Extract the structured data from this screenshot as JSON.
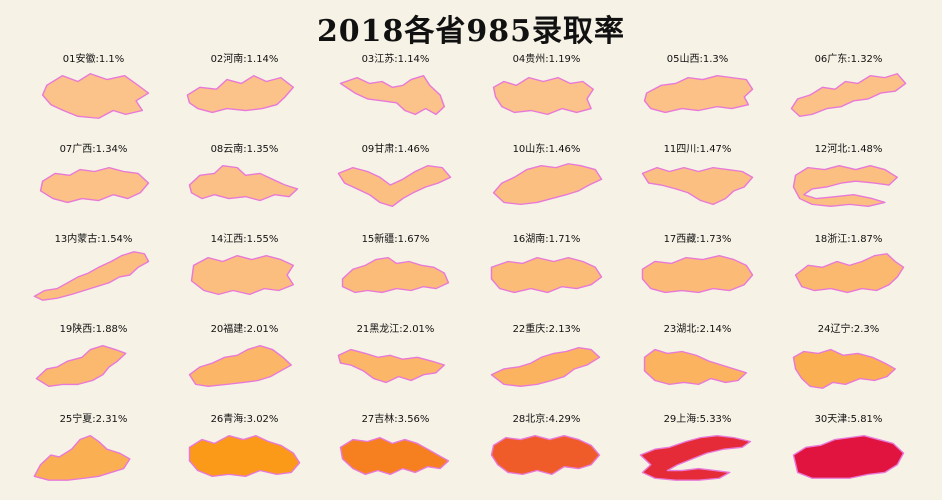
{
  "chart_data": {
    "type": "choropleth-small-multiples",
    "title": "2018各省985录取率",
    "unit": "%",
    "color_scale": {
      "low": "#fbc28a",
      "mid": "#fb9a18",
      "high": "#e0143e"
    },
    "items": [
      {
        "rank": "01",
        "name": "安徽",
        "value": 1.1
      },
      {
        "rank": "02",
        "name": "河南",
        "value": 1.14
      },
      {
        "rank": "03",
        "name": "江苏",
        "value": 1.14
      },
      {
        "rank": "04",
        "name": "贵州",
        "value": 1.19
      },
      {
        "rank": "05",
        "name": "山西",
        "value": 1.3
      },
      {
        "rank": "06",
        "name": "广东",
        "value": 1.32
      },
      {
        "rank": "07",
        "name": "广西",
        "value": 1.34
      },
      {
        "rank": "08",
        "name": "云南",
        "value": 1.35
      },
      {
        "rank": "09",
        "name": "甘肃",
        "value": 1.46
      },
      {
        "rank": "10",
        "name": "山东",
        "value": 1.46
      },
      {
        "rank": "11",
        "name": "四川",
        "value": 1.47
      },
      {
        "rank": "12",
        "name": "河北",
        "value": 1.48
      },
      {
        "rank": "13",
        "name": "内蒙古",
        "value": 1.54
      },
      {
        "rank": "14",
        "name": "江西",
        "value": 1.55
      },
      {
        "rank": "15",
        "name": "新疆",
        "value": 1.67
      },
      {
        "rank": "16",
        "name": "湖南",
        "value": 1.71
      },
      {
        "rank": "17",
        "name": "西藏",
        "value": 1.73
      },
      {
        "rank": "18",
        "name": "浙江",
        "value": 1.87
      },
      {
        "rank": "19",
        "name": "陕西",
        "value": 1.88
      },
      {
        "rank": "20",
        "name": "福建",
        "value": 2.01
      },
      {
        "rank": "21",
        "name": "黑龙江",
        "value": 2.01
      },
      {
        "rank": "22",
        "name": "重庆",
        "value": 2.13
      },
      {
        "rank": "23",
        "name": "湖北",
        "value": 2.14
      },
      {
        "rank": "24",
        "name": "辽宁",
        "value": 2.3
      },
      {
        "rank": "25",
        "name": "宁夏",
        "value": 2.31
      },
      {
        "rank": "26",
        "name": "青海",
        "value": 3.02
      },
      {
        "rank": "27",
        "name": "吉林",
        "value": 3.56
      },
      {
        "rank": "28",
        "name": "北京",
        "value": 4.29
      },
      {
        "rank": "29",
        "name": "上海",
        "value": 5.33
      },
      {
        "rank": "30",
        "name": "天津",
        "value": 5.81
      }
    ]
  }
}
